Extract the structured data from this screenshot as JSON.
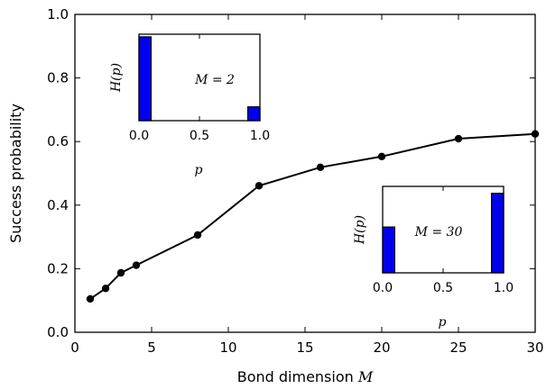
{
  "chart_data": {
    "main": {
      "type": "line",
      "xlabel_text": "Bond dimension ",
      "xlabel_math": "M",
      "ylabel": "Success probability",
      "xlim": [
        0,
        30
      ],
      "ylim": [
        0.0,
        1.0
      ],
      "xticks": [
        0,
        5,
        10,
        15,
        20,
        25,
        30
      ],
      "xtick_labels": [
        "0",
        "5",
        "10",
        "15",
        "20",
        "25",
        "30"
      ],
      "yticks": [
        0.0,
        0.2,
        0.4,
        0.6,
        0.8,
        1.0
      ],
      "ytick_labels": [
        "0.0",
        "0.2",
        "0.4",
        "0.6",
        "0.8",
        "1.0"
      ],
      "grid": false,
      "series": [
        {
          "color": "#000000",
          "x": [
            1,
            2,
            3,
            4,
            8,
            12,
            16,
            20,
            25,
            30
          ],
          "y": [
            0.105,
            0.138,
            0.187,
            0.211,
            0.306,
            0.461,
            0.519,
            0.553,
            0.609,
            0.624
          ]
        }
      ]
    },
    "insets": [
      {
        "type": "bar",
        "annotation": "M = 2",
        "ylabel": "H(p)",
        "xlabel": "p",
        "xlim": [
          0.0,
          1.0
        ],
        "ylim": [
          0,
          1
        ],
        "xticks": [
          0.0,
          0.5,
          1.0
        ],
        "xtick_labels": [
          "0.0",
          "0.5",
          "1.0"
        ],
        "bar_color": "#0000ee",
        "bars": [
          {
            "x": 0.0,
            "width": 0.1,
            "height": 0.97
          },
          {
            "x": 0.9,
            "width": 0.1,
            "height": 0.16
          }
        ]
      },
      {
        "type": "bar",
        "annotation": "M = 30",
        "ylabel": "H(p)",
        "xlabel": "p",
        "xlim": [
          0.0,
          1.0
        ],
        "ylim": [
          0,
          1
        ],
        "xticks": [
          0.0,
          0.5,
          1.0
        ],
        "xtick_labels": [
          "0.0",
          "0.5",
          "1.0"
        ],
        "bar_color": "#0000ee",
        "bars": [
          {
            "x": 0.0,
            "width": 0.1,
            "height": 0.53
          },
          {
            "x": 0.9,
            "width": 0.1,
            "height": 0.92
          }
        ]
      }
    ]
  }
}
